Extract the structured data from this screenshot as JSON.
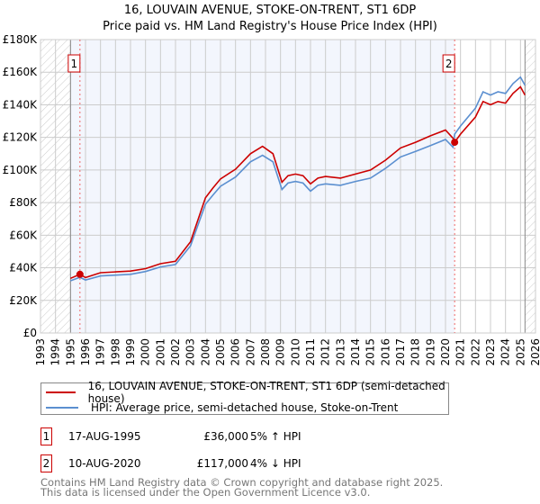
{
  "chart_data": {
    "type": "line",
    "title": "16, LOUVAIN AVENUE, STOKE-ON-TRENT, ST1 6DP",
    "subtitle": "Price paid vs. HM Land Registry's House Price Index (HPI)",
    "xlim": [
      1993,
      2026
    ],
    "ylim": [
      0,
      180000
    ],
    "x_ticks": [
      "1993",
      "1994",
      "1995",
      "1996",
      "1997",
      "1998",
      "1999",
      "2000",
      "2001",
      "2002",
      "2003",
      "2004",
      "2005",
      "2006",
      "2007",
      "2008",
      "2009",
      "2010",
      "2011",
      "2012",
      "2013",
      "2014",
      "2015",
      "2016",
      "2017",
      "2018",
      "2019",
      "2020",
      "2021",
      "2022",
      "2023",
      "2024",
      "2025",
      "2026"
    ],
    "y_ticks": [
      {
        "v": 0,
        "label": "£0"
      },
      {
        "v": 20000,
        "label": "£20K"
      },
      {
        "v": 40000,
        "label": "£40K"
      },
      {
        "v": 60000,
        "label": "£60K"
      },
      {
        "v": 80000,
        "label": "£80K"
      },
      {
        "v": 100000,
        "label": "£100K"
      },
      {
        "v": 120000,
        "label": "£120K"
      },
      {
        "v": 140000,
        "label": "£140K"
      },
      {
        "v": 160000,
        "label": "£160K"
      },
      {
        "v": 180000,
        "label": "£180K"
      }
    ],
    "grid": true,
    "hatched_before": 1995.0,
    "hatched_after": 2025.3,
    "series": [
      {
        "name": "16, LOUVAIN AVENUE, STOKE-ON-TRENT, ST1 6DP (semi-detached house)",
        "color": "#cc0000",
        "x": [
          1995.0,
          1995.63,
          1996,
          1997,
          1998,
          1999,
          2000,
          2001,
          2002,
          2003,
          2004,
          2004.5,
          2005,
          2006,
          2007,
          2007.8,
          2008.5,
          2009.1,
          2009.5,
          2010,
          2010.5,
          2011,
          2011.5,
          2012,
          2013,
          2014,
          2015,
          2016,
          2017,
          2018,
          2019,
          2020,
          2020.5,
          2020.61,
          2021,
          2022,
          2022.5,
          2023,
          2023.5,
          2024,
          2024.5,
          2025,
          2025.3
        ],
        "values": [
          33500,
          36000,
          34000,
          37000,
          37500,
          38000,
          39500,
          42500,
          44000,
          56000,
          83000,
          89000,
          94500,
          100500,
          110000,
          114500,
          110000,
          92500,
          96500,
          97500,
          96500,
          91500,
          95000,
          96000,
          95000,
          97500,
          100000,
          106000,
          113500,
          117000,
          121000,
          124500,
          119500,
          117000,
          122000,
          132500,
          142000,
          140000,
          142000,
          141000,
          147000,
          151000,
          146000
        ]
      },
      {
        "name": "HPI: Average price, semi-detached house, Stoke-on-Trent",
        "color": "#5b8fd0",
        "x": [
          1995.0,
          1995.63,
          1996,
          1997,
          1998,
          1999,
          2000,
          2001,
          2002,
          2003,
          2004,
          2004.5,
          2005,
          2006,
          2007,
          2007.8,
          2008.5,
          2009.1,
          2009.5,
          2010,
          2010.5,
          2011,
          2011.5,
          2012,
          2013,
          2014,
          2015,
          2016,
          2017,
          2018,
          2019,
          2020,
          2020.5,
          2020.61,
          2021,
          2022,
          2022.5,
          2023,
          2023.5,
          2024,
          2024.5,
          2025,
          2025.3
        ],
        "values": [
          32000,
          34200,
          32500,
          35000,
          35500,
          36000,
          37700,
          40500,
          42000,
          53500,
          79000,
          84700,
          90000,
          95700,
          105000,
          109000,
          105000,
          88000,
          92000,
          93000,
          92000,
          87000,
          90600,
          91500,
          90600,
          93000,
          95000,
          101000,
          108000,
          111400,
          115000,
          118700,
          114000,
          122000,
          127000,
          138000,
          148000,
          146000,
          148000,
          147000,
          153000,
          157000,
          152000
        ]
      }
    ],
    "annotations": [
      {
        "label": "1",
        "x": 1995.63,
        "y": 36000
      },
      {
        "label": "2",
        "x": 2020.61,
        "y": 117000
      }
    ]
  },
  "legend": {
    "items": [
      {
        "label": "16, LOUVAIN AVENUE, STOKE-ON-TRENT, ST1 6DP (semi-detached house)",
        "color": "#cc0000"
      },
      {
        "label": "HPI: Average price, semi-detached house, Stoke-on-Trent",
        "color": "#5b8fd0"
      }
    ]
  },
  "sales": [
    {
      "num": "1",
      "date": "17-AUG-1995",
      "price": "£36,000",
      "hpi": "5% ↑ HPI"
    },
    {
      "num": "2",
      "date": "10-AUG-2020",
      "price": "£117,000",
      "hpi": "4% ↓ HPI"
    }
  ],
  "footer": {
    "line1": "Contains HM Land Registry data © Crown copyright and database right 2025.",
    "line2": "This data is licensed under the Open Government Licence v3.0."
  }
}
